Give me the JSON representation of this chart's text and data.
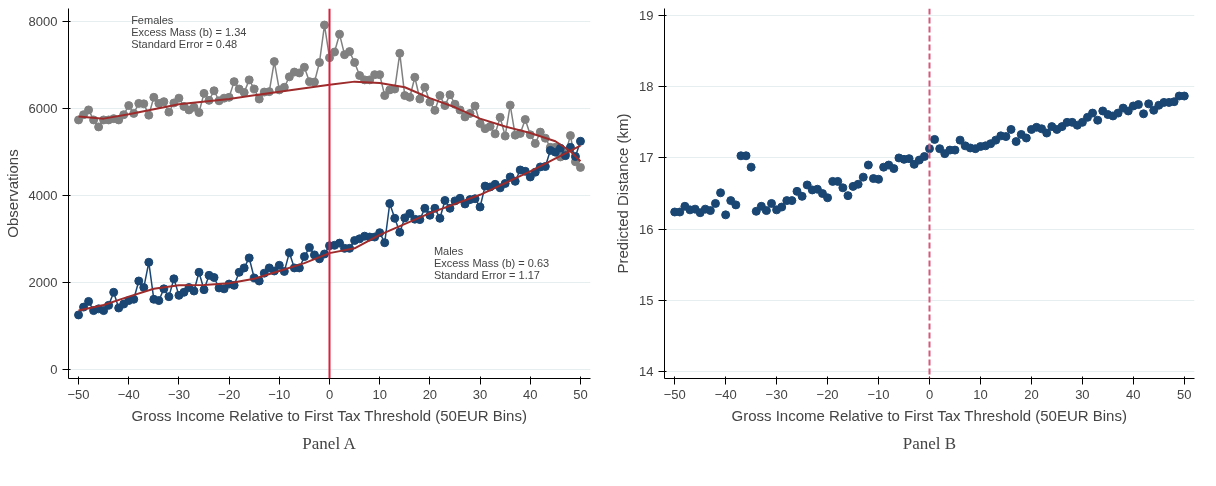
{
  "chart_data": [
    {
      "type": "line",
      "title": "Panel A",
      "xlabel": "Gross Income Relative to First Tax Threshold (50EUR Bins)",
      "ylabel": "Observations",
      "xlim": [
        -52,
        52
      ],
      "ylim": [
        -200,
        8300
      ],
      "xticks": [
        -50,
        -40,
        -30,
        -20,
        -10,
        0,
        10,
        20,
        30,
        40,
        50
      ],
      "yticks": [
        0,
        2000,
        4000,
        6000,
        8000
      ],
      "grid": "y",
      "marker": "circle",
      "line_style": "solid",
      "annotations": [
        "Females\nExcess Mass (b) = 1.34\nStandard Error = 0.48",
        "Males\nExcess Mass (b) = 0.63\nStandard Error = 1.17"
      ],
      "ref_lines": [
        {
          "axis": "x",
          "value": 0,
          "color": "#d8213f",
          "line_style": "solid"
        }
      ],
      "series": [
        {
          "color": "#808080",
          "x": [
            -50,
            -49,
            -48,
            -47,
            -46,
            -45,
            -44,
            -43,
            -42,
            -41,
            -40,
            -39,
            -38,
            -37,
            -36,
            -35,
            -34,
            -33,
            -32,
            -31,
            -30,
            -29,
            -28,
            -27,
            -26,
            -25,
            -24,
            -23,
            -22,
            -21,
            -20,
            -19,
            -18,
            -17,
            -16,
            -15,
            -14,
            -13,
            -12,
            -11,
            -10,
            -9,
            -8,
            -7,
            -6,
            -5,
            -4,
            -3,
            -2,
            -1,
            0,
            1,
            2,
            3,
            4,
            5,
            6,
            7,
            8,
            9,
            10,
            11,
            12,
            13,
            14,
            15,
            16,
            17,
            18,
            19,
            20,
            21,
            22,
            23,
            24,
            25,
            26,
            27,
            28,
            29,
            30,
            31,
            32,
            33,
            34,
            35,
            36,
            37,
            38,
            39,
            40,
            41,
            42,
            43,
            44,
            45,
            46,
            47,
            48,
            49,
            50
          ],
          "values": [
            5740,
            5860,
            5970,
            5740,
            5580,
            5740,
            5740,
            5770,
            5740,
            5860,
            6070,
            5890,
            6120,
            6110,
            5850,
            6260,
            6120,
            6160,
            5920,
            6130,
            6240,
            6050,
            5970,
            6030,
            5910,
            6350,
            6190,
            6410,
            6180,
            6240,
            6260,
            6620,
            6450,
            6370,
            6660,
            6450,
            6220,
            6380,
            6390,
            7080,
            6430,
            6490,
            6730,
            6840,
            6820,
            6950,
            6620,
            6610,
            7060,
            7920,
            7170,
            7300,
            7710,
            7240,
            7310,
            7060,
            6760,
            6660,
            6660,
            6780,
            6780,
            6300,
            6430,
            6450,
            7270,
            6300,
            6260,
            6720,
            6220,
            6490,
            6150,
            5960,
            6300,
            6070,
            6320,
            6100,
            5970,
            5810,
            5890,
            6060,
            5660,
            5540,
            5590,
            5420,
            5800,
            5370,
            6080,
            5390,
            5430,
            5750,
            5400,
            5200,
            5460,
            5320,
            5110,
            5110,
            4890,
            4970,
            5380,
            4780,
            4650
          ]
        },
        {
          "color": "#1a4673",
          "x": [
            -50,
            -49,
            -48,
            -47,
            -46,
            -45,
            -44,
            -43,
            -42,
            -41,
            -40,
            -39,
            -38,
            -37,
            -36,
            -35,
            -34,
            -33,
            -32,
            -31,
            -30,
            -29,
            -28,
            -27,
            -26,
            -25,
            -24,
            -23,
            -22,
            -21,
            -20,
            -19,
            -18,
            -17,
            -16,
            -15,
            -14,
            -13,
            -12,
            -11,
            -10,
            -9,
            -8,
            -7,
            -6,
            -5,
            -4,
            -3,
            -2,
            -1,
            0,
            1,
            2,
            3,
            4,
            5,
            6,
            7,
            8,
            9,
            10,
            11,
            12,
            13,
            14,
            15,
            16,
            17,
            18,
            19,
            20,
            21,
            22,
            23,
            24,
            25,
            26,
            27,
            28,
            29,
            30,
            31,
            32,
            33,
            34,
            35,
            36,
            37,
            38,
            39,
            40,
            41,
            42,
            43,
            44,
            45,
            46,
            47,
            48,
            49,
            50
          ],
          "values": [
            1260,
            1440,
            1570,
            1360,
            1400,
            1360,
            1480,
            1780,
            1420,
            1510,
            1590,
            1620,
            2040,
            1890,
            2470,
            1620,
            1590,
            1860,
            1680,
            2090,
            1710,
            1780,
            1890,
            1810,
            2240,
            1840,
            2170,
            2120,
            1880,
            1860,
            1970,
            1940,
            2240,
            2340,
            2570,
            2110,
            2040,
            2220,
            2340,
            2270,
            2400,
            2260,
            2690,
            2340,
            2340,
            2600,
            2810,
            2640,
            2550,
            2660,
            2850,
            2860,
            2910,
            2790,
            2790,
            2970,
            3010,
            3070,
            3050,
            3050,
            3150,
            2920,
            3820,
            3480,
            3160,
            3490,
            3590,
            3460,
            3450,
            3710,
            3550,
            3710,
            3480,
            3890,
            3710,
            3880,
            3940,
            3810,
            3910,
            3930,
            3740,
            4220,
            4200,
            4260,
            4180,
            4280,
            4430,
            4330,
            4590,
            4560,
            4430,
            4540,
            4660,
            4670,
            5040,
            5000,
            5090,
            4920,
            5110,
            4900,
            5250
          ]
        },
        {
          "type": "line",
          "marker": "none",
          "color": "#9e2b2b",
          "x": [
            -50,
            -45,
            -40,
            -30,
            -20,
            -10,
            0,
            5,
            10,
            15,
            20,
            25,
            30,
            35,
            40,
            45,
            48,
            50
          ],
          "values": [
            5820,
            5770,
            5870,
            6100,
            6220,
            6390,
            6550,
            6620,
            6590,
            6490,
            6240,
            6030,
            5770,
            5590,
            5440,
            5250,
            5020,
            4790
          ]
        },
        {
          "type": "line",
          "marker": "none",
          "color": "#9e2b2b",
          "x": [
            -50,
            -45,
            -40,
            -35,
            -30,
            -25,
            -20,
            -15,
            -10,
            -5,
            0,
            5,
            10,
            20,
            30,
            40,
            50
          ],
          "values": [
            1360,
            1490,
            1680,
            1860,
            1940,
            1950,
            1990,
            2090,
            2270,
            2450,
            2680,
            2790,
            3100,
            3600,
            4020,
            4560,
            5150
          ]
        }
      ]
    },
    {
      "type": "scatter",
      "title": "Panel B",
      "xlabel": "Gross Income Relative to First Tax Threshold (50EUR Bins)",
      "ylabel": "Predicted Distance (km)",
      "xlim": [
        -52,
        52
      ],
      "ylim": [
        13.9,
        19.1
      ],
      "xticks": [
        -50,
        -40,
        -30,
        -20,
        -10,
        0,
        10,
        20,
        30,
        40,
        50
      ],
      "yticks": [
        14,
        15,
        16,
        17,
        18,
        19
      ],
      "grid": "y",
      "marker": "circle",
      "ref_lines": [
        {
          "axis": "x",
          "value": 0,
          "color": "#d9577a",
          "line_style": "dashed"
        }
      ],
      "series": [
        {
          "color": "#1a4673",
          "x": [
            -50,
            -49,
            -48,
            -47,
            -46,
            -45,
            -44,
            -43,
            -42,
            -41,
            -40,
            -39,
            -38,
            -37,
            -36,
            -35,
            -34,
            -33,
            -32,
            -31,
            -30,
            -29,
            -28,
            -27,
            -26,
            -25,
            -24,
            -23,
            -22,
            -21,
            -20,
            -19,
            -18,
            -17,
            -16,
            -15,
            -14,
            -13,
            -12,
            -11,
            -10,
            -9,
            -8,
            -7,
            -6,
            -5,
            -4,
            -3,
            -2,
            -1,
            0,
            1,
            2,
            3,
            4,
            5,
            6,
            7,
            8,
            9,
            10,
            11,
            12,
            13,
            14,
            15,
            16,
            17,
            18,
            19,
            20,
            21,
            22,
            23,
            24,
            25,
            26,
            27,
            28,
            29,
            30,
            31,
            32,
            33,
            34,
            35,
            36,
            37,
            38,
            39,
            40,
            41,
            42,
            43,
            44,
            45,
            46,
            47,
            48,
            49,
            50
          ],
          "values": [
            16.24,
            16.24,
            16.32,
            16.27,
            16.28,
            16.23,
            16.28,
            16.26,
            16.36,
            16.51,
            16.2,
            16.4,
            16.34,
            17.03,
            17.03,
            16.87,
            16.25,
            16.32,
            16.26,
            16.36,
            16.27,
            16.31,
            16.4,
            16.4,
            16.53,
            16.46,
            16.62,
            16.55,
            16.56,
            16.5,
            16.44,
            16.67,
            16.67,
            16.58,
            16.47,
            16.6,
            16.63,
            16.73,
            16.9,
            16.71,
            16.7,
            16.87,
            16.9,
            16.85,
            17.0,
            16.98,
            16.99,
            16.91,
            16.97,
            17.02,
            17.13,
            17.26,
            17.13,
            17.06,
            17.11,
            17.11,
            17.25,
            17.17,
            17.14,
            17.13,
            17.16,
            17.17,
            17.2,
            17.25,
            17.31,
            17.3,
            17.4,
            17.23,
            17.33,
            17.28,
            17.4,
            17.43,
            17.41,
            17.35,
            17.44,
            17.4,
            17.44,
            17.5,
            17.5,
            17.46,
            17.5,
            17.57,
            17.63,
            17.53,
            17.66,
            17.61,
            17.59,
            17.63,
            17.7,
            17.66,
            17.73,
            17.75,
            17.62,
            17.76,
            17.67,
            17.74,
            17.78,
            17.78,
            17.79,
            17.87,
            17.87
          ]
        }
      ]
    }
  ]
}
